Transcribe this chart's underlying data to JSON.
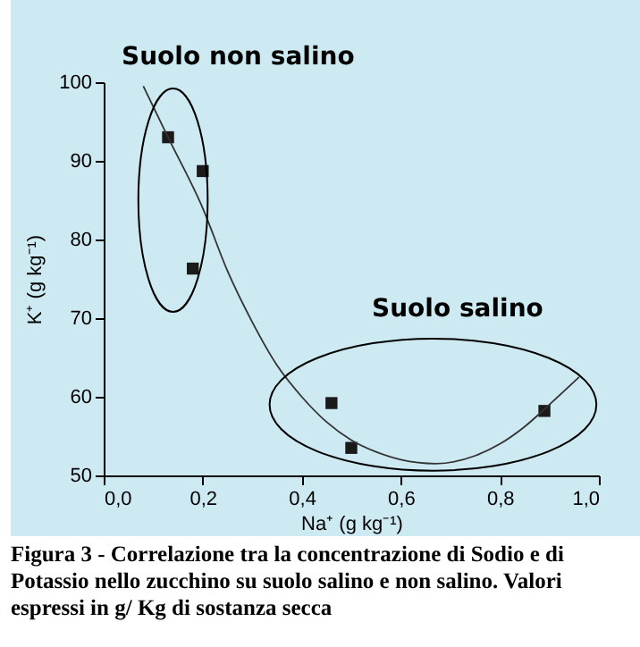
{
  "chart_data": {
    "type": "scatter",
    "xlabel": "Na⁺ (g kg⁻¹)",
    "ylabel": "K⁺ (g kg⁻¹)",
    "xlim": [
      0,
      1
    ],
    "ylim": [
      50,
      100
    ],
    "xticks": [
      {
        "value": 0,
        "label": "0,0"
      },
      {
        "value": 0.2,
        "label": "0,2"
      },
      {
        "value": 0.4,
        "label": "0,4"
      },
      {
        "value": 0.6,
        "label": "0,6"
      },
      {
        "value": 0.8,
        "label": "0,8"
      },
      {
        "value": 1,
        "label": "1,0"
      }
    ],
    "yticks": [
      50,
      60,
      70,
      80,
      90,
      100
    ],
    "grid": false,
    "series": [
      {
        "marker": "square",
        "color": "#1a1a1a",
        "x": [
          0.13,
          0.18,
          0.2,
          0.46,
          0.5,
          0.89
        ],
        "values": [
          93,
          76.3,
          88.7,
          59.2,
          53.5,
          58.2
        ]
      },
      {
        "type": "line",
        "marker": "none",
        "color": "#333333",
        "x": [
          0.08,
          0.13,
          0.2,
          0.25,
          0.3,
          0.35,
          0.4,
          0.45,
          0.5,
          0.55,
          0.6,
          0.67,
          0.75,
          0.8,
          0.85,
          0.9,
          0.96
        ],
        "values": [
          99.5,
          93,
          84,
          76,
          69.5,
          64,
          60,
          56.8,
          54.5,
          53,
          52,
          51.5,
          52.5,
          54,
          56.2,
          59,
          62.5
        ]
      }
    ],
    "annotations": [
      "Suolo non salino",
      "Suolo salino",
      "Figura 3 - Correlazione tra la concentrazione di Sodio e di Potassio nello zucchino su suolo salino e non salino. Valori espressi in g/ Kg di sostanza secca"
    ]
  }
}
